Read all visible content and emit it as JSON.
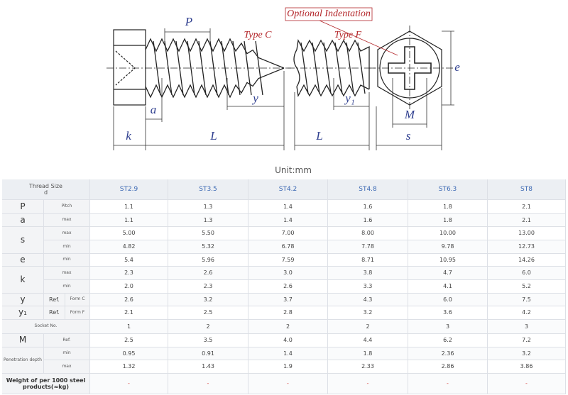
{
  "drawing": {
    "optional_indentation": "Optional Indentation",
    "type_c": "Type C",
    "type_f": "Type F",
    "pitch": "P",
    "e": "e",
    "a": "a",
    "y": "y",
    "y1": "y₁",
    "m": "M",
    "k": "k",
    "l_c": "L",
    "l_f": "L",
    "s": "s"
  },
  "unit": "Unit:mm",
  "table": {
    "header": {
      "label": "Thread Size",
      "sub": "d",
      "sizes": [
        "ST2.9",
        "ST3.5",
        "ST4.2",
        "ST4.8",
        "ST6.3",
        "ST8"
      ]
    },
    "rows": [
      {
        "symbol": "P",
        "condition": "Pitch",
        "values": [
          "1.1",
          "1.3",
          "1.4",
          "1.6",
          "1.8",
          "2.1"
        ]
      },
      {
        "symbol": "a",
        "condition": "max",
        "values": [
          "1.1",
          "1.3",
          "1.4",
          "1.6",
          "1.8",
          "2.1"
        ]
      },
      {
        "symbol": "s",
        "condition": "max",
        "values": [
          "5.00",
          "5.50",
          "7.00",
          "8.00",
          "10.00",
          "13.00"
        ]
      },
      {
        "condition": "min",
        "values": [
          "4.82",
          "5.32",
          "6.78",
          "7.78",
          "9.78",
          "12.73"
        ]
      },
      {
        "symbol": "e",
        "condition": "min",
        "values": [
          "5.4",
          "5.96",
          "7.59",
          "8.71",
          "10.95",
          "14.26"
        ]
      },
      {
        "symbol": "k",
        "condition": "max",
        "values": [
          "2.3",
          "2.6",
          "3.0",
          "3.8",
          "4.7",
          "6.0"
        ]
      },
      {
        "condition": "min",
        "values": [
          "2.0",
          "2.3",
          "2.6",
          "3.3",
          "4.1",
          "5.2"
        ]
      },
      {
        "symbol": "y",
        "reference": "Ref.",
        "condition": "Form C",
        "values": [
          "2.6",
          "3.2",
          "3.7",
          "4.3",
          "6.0",
          "7.5"
        ]
      },
      {
        "symbol": "y₁",
        "reference": "Ref.",
        "condition": "Form F",
        "values": [
          "2.1",
          "2.5",
          "2.8",
          "3.2",
          "3.6",
          "4.2"
        ]
      },
      {
        "symbol": "Socket No.",
        "values": [
          "1",
          "2",
          "2",
          "2",
          "3",
          "3"
        ]
      },
      {
        "symbol": "M",
        "condition": "Ref.",
        "values": [
          "2.5",
          "3.5",
          "4.0",
          "4.4",
          "6.2",
          "7.2"
        ]
      },
      {
        "symbol": "Penetration depth",
        "condition": "min",
        "values": [
          "0.95",
          "0.91",
          "1.4",
          "1.8",
          "2.36",
          "3.2"
        ]
      },
      {
        "condition": "max",
        "values": [
          "1.32",
          "1.43",
          "1.9",
          "2.33",
          "2.86",
          "3.86"
        ]
      },
      {
        "symbol": "Weight of per 1000 steel products(≈kg)",
        "values": [
          "-",
          "-",
          "-",
          "-",
          "-",
          "-"
        ]
      }
    ]
  }
}
